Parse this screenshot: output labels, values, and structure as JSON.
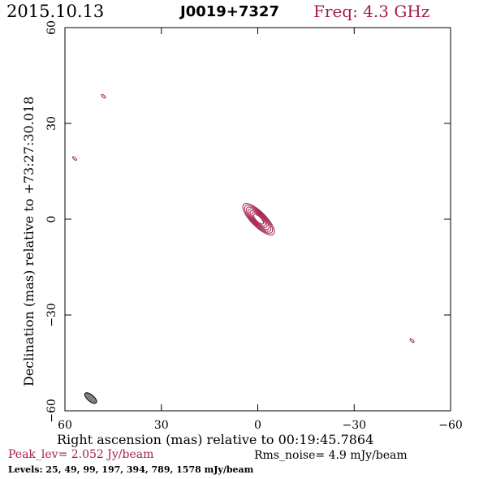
{
  "header": {
    "date": "2015.10.13",
    "source": "J0019+7327",
    "freq": "Freq: 4.3 GHz"
  },
  "chart_data": {
    "type": "contour",
    "xlabel": "Right ascension (mas) relative to 00:19:45.7864",
    "ylabel": "Declination (mas) relative to +73:27:30.018",
    "xlim": [
      60,
      -60
    ],
    "ylim": [
      -60,
      60
    ],
    "x_ticks": [
      60,
      30,
      0,
      -30,
      -60
    ],
    "y_ticks": [
      -60,
      -30,
      0,
      30,
      60
    ],
    "x_tick_labels": [
      "60",
      "30",
      "0",
      "−30",
      "−60"
    ],
    "y_tick_labels": [
      "−60",
      "−30",
      "0",
      "30",
      "60"
    ],
    "contour_color": "#a3204a",
    "main_component": {
      "center": [
        0,
        0
      ],
      "major_axis_pa_deg": 45
    },
    "isolated_features": [
      {
        "x": 48,
        "y": 38.5
      },
      {
        "x": 57,
        "y": 19
      },
      {
        "x": -48,
        "y": -38
      }
    ],
    "beam": {
      "center": [
        52,
        -56
      ],
      "color": "#808080"
    },
    "peak_level": "Peak_lev=  2.052 Jy/beam",
    "rms_noise": "Rms_noise=   4.9 mJy/beam",
    "levels": "Levels:  25,  49,  99, 197, 394, 789, 1578 mJy/beam"
  }
}
